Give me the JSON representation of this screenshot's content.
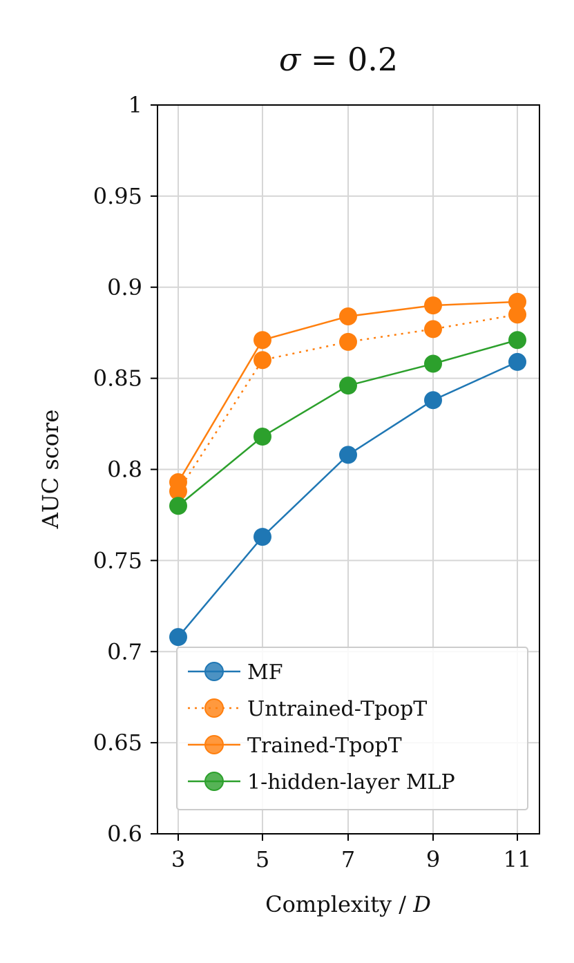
{
  "chart_data": {
    "type": "line",
    "title": "σ = 0.2",
    "title_parts": {
      "symbol": "σ",
      "rest": " = 0.2"
    },
    "xlabel": "Complexity / D",
    "xlabel_parts": {
      "main": "Complexity / ",
      "var": "D"
    },
    "ylabel": "AUC score",
    "x": [
      3,
      5,
      7,
      9,
      11
    ],
    "xticks": [
      "3",
      "5",
      "7",
      "9",
      "11"
    ],
    "ylim": [
      0.6,
      1.0
    ],
    "yticks": [
      0.6,
      0.65,
      0.7,
      0.75,
      0.8,
      0.85,
      0.9,
      0.95,
      1.0
    ],
    "ytick_labels": [
      "0.6",
      "0.65",
      "0.7",
      "0.75",
      "0.8",
      "0.85",
      "0.9",
      "0.95",
      "1"
    ],
    "grid": true,
    "legend_position": "lower-right",
    "series": [
      {
        "name": "MF",
        "color": "#1f77b4",
        "linestyle": "solid",
        "values": [
          0.708,
          0.763,
          0.808,
          0.838,
          0.859
        ]
      },
      {
        "name": "Untrained-TpopT",
        "color": "#ff7f0e",
        "linestyle": "dotted",
        "values": [
          0.788,
          0.86,
          0.87,
          0.877,
          0.885
        ]
      },
      {
        "name": "Trained-TpopT",
        "color": "#ff7f0e",
        "linestyle": "solid",
        "values": [
          0.793,
          0.871,
          0.884,
          0.89,
          0.892
        ]
      },
      {
        "name": "1-hidden-layer MLP",
        "color": "#2ca02c",
        "linestyle": "solid",
        "values": [
          0.78,
          0.818,
          0.846,
          0.858,
          0.871
        ]
      }
    ]
  }
}
